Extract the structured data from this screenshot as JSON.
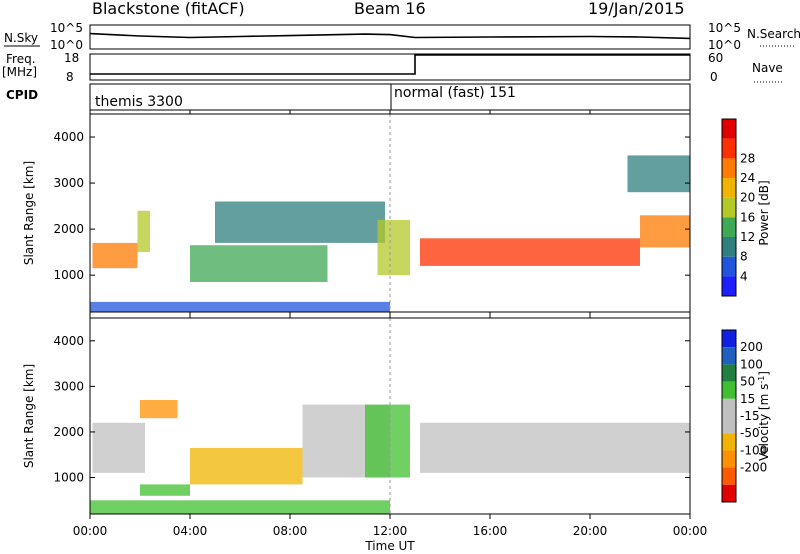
{
  "header": {
    "site": "Blackstone (fitACF)",
    "beam": "Beam 16",
    "date": "19/Jan/2015"
  },
  "nsky": {
    "label": "N.Sky",
    "ticks": [
      "10^5",
      "10^0"
    ],
    "right_label": "N.Search"
  },
  "freq": {
    "label": "Freq.",
    "unit": "[MHz]",
    "left_ticks": [
      "18",
      "8"
    ],
    "right_ticks": [
      "60",
      "0"
    ],
    "right_label": "Nave"
  },
  "cpid": {
    "label": "CPID",
    "modes": [
      "themis 3300",
      "normal (fast) 151"
    ]
  },
  "time_axis": {
    "label": "Time UT",
    "ticks": [
      "00:00",
      "04:00",
      "08:00",
      "12:00",
      "16:00",
      "20:00",
      "00:00"
    ]
  },
  "colors": {
    "power": [
      "#1e1eff",
      "#2255dd",
      "#2f7f7f",
      "#3fa855",
      "#b4c828",
      "#f0b400",
      "#ff7a00",
      "#ff3000",
      "#e00000"
    ],
    "velocity": [
      "#e00000",
      "#ff5a00",
      "#ff9000",
      "#f0b400",
      "#c0c0c0",
      "#c0c0c0",
      "#40c030",
      "#208040",
      "#2060c0",
      "#1020e0"
    ]
  },
  "chart_data": [
    {
      "type": "line",
      "title": "N.Sky",
      "x": [
        0,
        2,
        4,
        6,
        8,
        10,
        11,
        12,
        13,
        16,
        20,
        22,
        24
      ],
      "series": [
        {
          "name": "N.Sky",
          "values": [
            3.2,
            2.7,
            2.4,
            2.6,
            2.8,
            3.0,
            3.1,
            3.0,
            2.4,
            2.5,
            2.6,
            2.5,
            2.2
          ]
        }
      ],
      "ylim": [
        0,
        5
      ]
    },
    {
      "type": "line",
      "title": "Freq.",
      "ylabel": "[MHz]",
      "x": [
        0,
        13,
        13,
        24
      ],
      "series": [
        {
          "name": "Freq.",
          "values": [
            10.3,
            10.3,
            17.6,
            17.6
          ]
        }
      ],
      "ylim": [
        8,
        18
      ]
    },
    {
      "type": "heatmap",
      "title": "Power [dB]",
      "xlabel": "Time UT",
      "ylabel": "Slant Range [km]",
      "xlim": [
        0,
        24
      ],
      "ylim": [
        200,
        4500
      ],
      "yticks": [
        1000,
        2000,
        3000,
        4000
      ],
      "colorbar": {
        "label": "Power [dB]",
        "ticks": [
          4,
          8,
          12,
          16,
          20,
          24,
          28
        ]
      },
      "regions": [
        {
          "t": [
            0.1,
            1.9
          ],
          "r": [
            1150,
            1700
          ],
          "level": 0.8
        },
        {
          "t": [
            1.9,
            2.4
          ],
          "r": [
            1500,
            2400
          ],
          "level": 0.45
        },
        {
          "t": [
            4.0,
            9.5
          ],
          "r": [
            850,
            1650
          ],
          "level": 0.4
        },
        {
          "t": [
            5.0,
            11.8
          ],
          "r": [
            1700,
            2600
          ],
          "level": 0.2
        },
        {
          "t": [
            11.5,
            12.8
          ],
          "r": [
            1000,
            2200
          ],
          "level": 0.55
        },
        {
          "t": [
            13.2,
            22.0
          ],
          "r": [
            1200,
            1800
          ],
          "level": 0.85
        },
        {
          "t": [
            22.0,
            24.0
          ],
          "r": [
            1600,
            2300
          ],
          "level": 0.7
        },
        {
          "t": [
            21.5,
            24.0
          ],
          "r": [
            2800,
            3600
          ],
          "level": 0.25
        },
        {
          "t": [
            0.0,
            12.0
          ],
          "r": [
            200,
            420
          ],
          "level": 0.15
        }
      ]
    },
    {
      "type": "heatmap",
      "title": "Velocity [m s^-1]",
      "xlabel": "Time UT",
      "ylabel": "Slant Range [km]",
      "xlim": [
        0,
        24
      ],
      "ylim": [
        200,
        4500
      ],
      "yticks": [
        1000,
        2000,
        3000,
        4000
      ],
      "colorbar": {
        "label": "Velocity [m s",
        "unit_sup": "-1",
        "unit_close": "]",
        "ticks": [
          200,
          100,
          50,
          15,
          -15,
          -50,
          -100,
          -200
        ]
      },
      "regions": [
        {
          "t": [
            0.1,
            2.2
          ],
          "r": [
            1100,
            2200
          ],
          "level": 0.5
        },
        {
          "t": [
            4.0,
            8.5
          ],
          "r": [
            850,
            1650
          ],
          "level": 0.3
        },
        {
          "t": [
            2.0,
            4.0
          ],
          "r": [
            600,
            850
          ],
          "level": 0.65
        },
        {
          "t": [
            8.5,
            12.0
          ],
          "r": [
            1000,
            2600
          ],
          "level": 0.5
        },
        {
          "t": [
            11.0,
            12.8
          ],
          "r": [
            1000,
            2600
          ],
          "level": 0.65
        },
        {
          "t": [
            13.2,
            24.0
          ],
          "r": [
            1100,
            2200
          ],
          "level": 0.5
        },
        {
          "t": [
            0.0,
            12.0
          ],
          "r": [
            200,
            500
          ],
          "level": 0.65
        },
        {
          "t": [
            2.0,
            3.5
          ],
          "r": [
            2300,
            2700
          ],
          "level": 0.25
        }
      ]
    }
  ]
}
